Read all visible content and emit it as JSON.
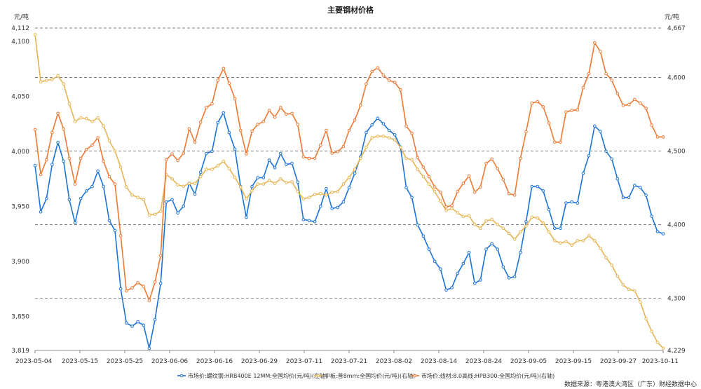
{
  "chart_data": {
    "type": "line",
    "title": "主要钢材价格",
    "left_unit": "元/吨",
    "right_unit": "元/吨",
    "source": "数据来源：粤港澳大湾区（广东）财经数据中心",
    "x_tick_labels": [
      "2023-05-04",
      "2023-05-15",
      "2023-05-25",
      "2023-06-06",
      "2023-06-16",
      "2023-06-29",
      "2023-07-11",
      "2023-07-21",
      "2023-08-02",
      "2023-08-14",
      "2023-08-24",
      "2023-09-05",
      "2023-09-15",
      "2023-09-27",
      "2023-10-11"
    ],
    "y_left": {
      "range": [
        3819,
        4112
      ],
      "tick_labels": [
        "3,819",
        "3,850",
        "3,900",
        "3,950",
        "4,000",
        "4,050",
        "4,100",
        "4,112"
      ],
      "tick_values": [
        3819,
        3850,
        3900,
        3950,
        4000,
        4050,
        4100,
        4112
      ]
    },
    "y_right": {
      "range": [
        4229,
        4667
      ],
      "tick_labels": [
        "4,229",
        "4,300",
        "4,400",
        "4,500",
        "4,600",
        "4,667"
      ],
      "tick_values": [
        4229,
        4300,
        4400,
        4500,
        4600,
        4667
      ]
    },
    "grid": "horizontal dashed at right-axis ticks",
    "legend_position": "bottom-center",
    "series": [
      {
        "name": "市场价:螺纹钢:HRB400E 12MM:全国均价(元/吨)(左轴)",
        "axis": "left",
        "color": "#1a73d9",
        "values": [
          3987,
          3945,
          3957,
          3988,
          4008,
          3991,
          3956,
          3935,
          3957,
          3964,
          3968,
          3982,
          3968,
          3937,
          3928,
          3875,
          3844,
          3841,
          3845,
          3842,
          3821,
          3847,
          3880,
          3954,
          3956,
          3944,
          3950,
          3971,
          3961,
          3981,
          3998,
          4000,
          4026,
          4035,
          4017,
          4002,
          3968,
          3940,
          3968,
          3976,
          3976,
          3992,
          3985,
          3998,
          3988,
          3989,
          3972,
          3938,
          3937,
          3936,
          3950,
          3966,
          3948,
          3949,
          3954,
          3967,
          3980,
          3995,
          4017,
          4024,
          4030,
          4025,
          4019,
          4015,
          4004,
          3967,
          3958,
          3933,
          3923,
          3911,
          3900,
          3893,
          3874,
          3876,
          3889,
          3898,
          3908,
          3880,
          3883,
          3911,
          3916,
          3911,
          3895,
          3885,
          3886,
          3908,
          3936,
          3968,
          3968,
          3964,
          3947,
          3930,
          3930,
          3953,
          3954,
          3953,
          3980,
          3996,
          4023,
          4018,
          4000,
          3993,
          3975,
          3958,
          3958,
          3969,
          3967,
          3960,
          3941,
          3927,
          3925
        ]
      },
      {
        "name": "中板:普8mm:全国均价(元/吨)(右轴)",
        "axis": "right",
        "color": "#e6b450",
        "values": [
          4658,
          4594,
          4596,
          4597,
          4602,
          4591,
          4564,
          4540,
          4545,
          4544,
          4540,
          4545,
          4534,
          4514,
          4500,
          4478,
          4451,
          4440,
          4437,
          4434,
          4413,
          4414,
          4418,
          4468,
          4462,
          4454,
          4452,
          4456,
          4456,
          4465,
          4475,
          4475,
          4480,
          4486,
          4476,
          4464,
          4451,
          4435,
          4446,
          4455,
          4455,
          4460,
          4456,
          4462,
          4457,
          4458,
          4445,
          4435,
          4437,
          4441,
          4442,
          4440,
          4444,
          4445,
          4455,
          4464,
          4475,
          4490,
          4505,
          4518,
          4520,
          4520,
          4518,
          4515,
          4505,
          4490,
          4488,
          4475,
          4465,
          4455,
          4445,
          4432,
          4419,
          4422,
          4416,
          4411,
          4412,
          4400,
          4395,
          4405,
          4407,
          4400,
          4395,
          4388,
          4380,
          4390,
          4398,
          4410,
          4409,
          4402,
          4390,
          4378,
          4375,
          4377,
          4372,
          4378,
          4378,
          4385,
          4378,
          4368,
          4355,
          4345,
          4330,
          4318,
          4312,
          4310,
          4295,
          4272,
          4255,
          4240,
          4232
        ]
      },
      {
        "name": "市场价:线材:8.0高线:HPB300:全国均价(元/吨)(右轴)",
        "axis": "right",
        "color": "#f07832",
        "values": [
          4529,
          4468,
          4488,
          4525,
          4551,
          4530,
          4490,
          4455,
          4490,
          4502,
          4508,
          4518,
          4486,
          4465,
          4455,
          4385,
          4310,
          4314,
          4321,
          4316,
          4297,
          4322,
          4358,
          4488,
          4496,
          4487,
          4497,
          4530,
          4512,
          4539,
          4559,
          4564,
          4596,
          4612,
          4592,
          4571,
          4528,
          4496,
          4527,
          4536,
          4540,
          4555,
          4546,
          4559,
          4550,
          4551,
          4536,
          4492,
          4490,
          4490,
          4508,
          4528,
          4497,
          4499,
          4506,
          4528,
          4542,
          4562,
          4591,
          4608,
          4613,
          4603,
          4596,
          4593,
          4583,
          4534,
          4524,
          4491,
          4478,
          4465,
          4451,
          4444,
          4424,
          4426,
          4445,
          4456,
          4466,
          4444,
          4451,
          4483,
          4489,
          4476,
          4461,
          4442,
          4440,
          4490,
          4526,
          4565,
          4567,
          4560,
          4538,
          4512,
          4512,
          4553,
          4555,
          4556,
          4586,
          4605,
          4647,
          4635,
          4605,
          4596,
          4578,
          4562,
          4563,
          4570,
          4565,
          4558,
          4535,
          4519,
          4519
        ]
      }
    ]
  }
}
